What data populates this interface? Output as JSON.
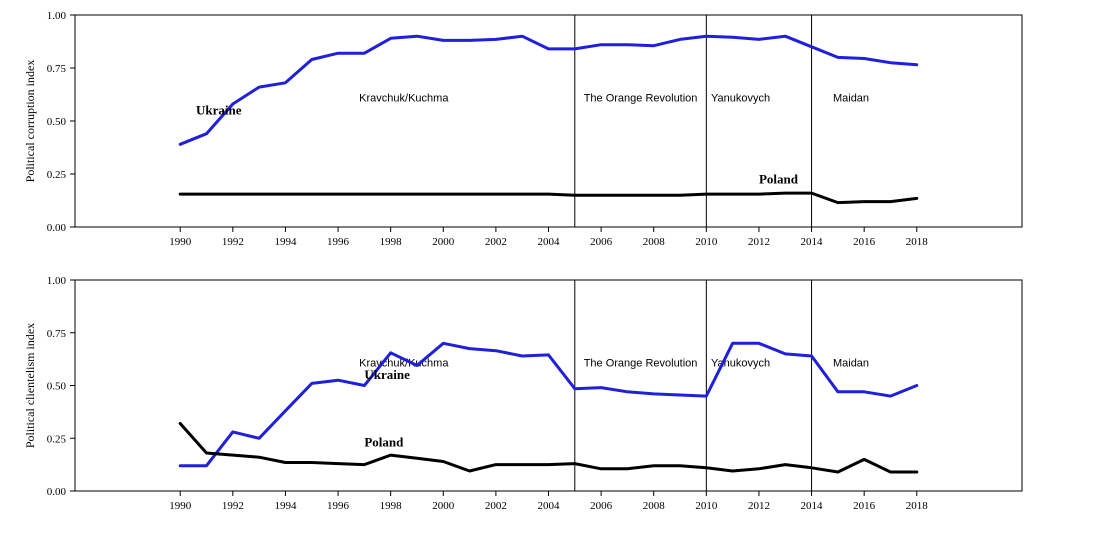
{
  "chart_data": [
    {
      "type": "line",
      "ylabel": "Political corruption index",
      "ylim": [
        0,
        1
      ],
      "yticks": [
        "0.00",
        "0.25",
        "0.50",
        "0.75",
        "1.00"
      ],
      "xlim": [
        1986,
        2022
      ],
      "xticks": [
        "1990",
        "1992",
        "1994",
        "1996",
        "1998",
        "2000",
        "2002",
        "2004",
        "2006",
        "2008",
        "2010",
        "2012",
        "2014",
        "2016",
        "2018"
      ],
      "x": [
        1990,
        1991,
        1992,
        1993,
        1994,
        1995,
        1996,
        1997,
        1998,
        1999,
        2000,
        2001,
        2002,
        2003,
        2004,
        2005,
        2006,
        2007,
        2008,
        2009,
        2010,
        2011,
        2012,
        2013,
        2014,
        2015,
        2016,
        2017,
        2018
      ],
      "series": [
        {
          "name": "Ukraine",
          "color": "#1f1fdc",
          "values": [
            0.39,
            0.44,
            0.58,
            0.66,
            0.68,
            0.79,
            0.82,
            0.82,
            0.89,
            0.9,
            0.88,
            0.88,
            0.885,
            0.9,
            0.84,
            0.84,
            0.86,
            0.86,
            0.855,
            0.885,
            0.9,
            0.895,
            0.885,
            0.9,
            0.85,
            0.8,
            0.795,
            0.775,
            0.765
          ]
        },
        {
          "name": "Poland",
          "color": "#000000",
          "values": [
            0.155,
            0.155,
            0.155,
            0.155,
            0.155,
            0.155,
            0.155,
            0.155,
            0.155,
            0.155,
            0.155,
            0.155,
            0.155,
            0.155,
            0.155,
            0.15,
            0.15,
            0.15,
            0.15,
            0.15,
            0.155,
            0.155,
            0.155,
            0.16,
            0.16,
            0.115,
            0.12,
            0.12,
            0.135
          ]
        }
      ],
      "vlines": [
        2005,
        2010,
        2014
      ],
      "periods": [
        {
          "label": "Kravchuk/Kuchma",
          "x": 1998.5
        },
        {
          "label": "The Orange Revolution",
          "x": 2007.5
        },
        {
          "label": "Yanukovych",
          "x": 2011.3
        },
        {
          "label": "Maidan",
          "x": 2015.5
        }
      ],
      "period_label_y": 0.61,
      "series_labels": [
        {
          "text": "Ukraine",
          "x": 1990.6,
          "y": 0.53
        },
        {
          "text": "Poland",
          "x": 2012.0,
          "y": 0.205
        }
      ]
    },
    {
      "type": "line",
      "ylabel": "Political clientelism index",
      "ylim": [
        0,
        1
      ],
      "yticks": [
        "0.00",
        "0.25",
        "0.50",
        "0.75",
        "1.00"
      ],
      "xlim": [
        1986,
        2022
      ],
      "xticks": [
        "1990",
        "1992",
        "1994",
        "1996",
        "1998",
        "2000",
        "2002",
        "2004",
        "2006",
        "2008",
        "2010",
        "2012",
        "2014",
        "2016",
        "2018"
      ],
      "x": [
        1990,
        1991,
        1992,
        1993,
        1994,
        1995,
        1996,
        1997,
        1998,
        1999,
        2000,
        2001,
        2002,
        2003,
        2004,
        2005,
        2006,
        2007,
        2008,
        2009,
        2010,
        2011,
        2012,
        2013,
        2014,
        2015,
        2016,
        2017,
        2018
      ],
      "series": [
        {
          "name": "Ukraine",
          "color": "#1f1fdc",
          "values": [
            0.12,
            0.12,
            0.28,
            0.25,
            0.38,
            0.51,
            0.525,
            0.5,
            0.655,
            0.595,
            0.7,
            0.675,
            0.665,
            0.64,
            0.645,
            0.485,
            0.49,
            0.47,
            0.46,
            0.455,
            0.45,
            0.7,
            0.7,
            0.65,
            0.64,
            0.47,
            0.47,
            0.45,
            0.5
          ]
        },
        {
          "name": "Poland",
          "color": "#000000",
          "values": [
            0.32,
            0.18,
            0.17,
            0.16,
            0.135,
            0.135,
            0.13,
            0.125,
            0.17,
            0.155,
            0.14,
            0.095,
            0.125,
            0.125,
            0.125,
            0.13,
            0.105,
            0.105,
            0.12,
            0.12,
            0.11,
            0.095,
            0.105,
            0.125,
            0.11,
            0.09,
            0.15,
            0.09,
            0.09
          ]
        }
      ],
      "vlines": [
        2005,
        2010,
        2014
      ],
      "periods": [
        {
          "label": "Kravchuk/Kuchma",
          "x": 1998.5
        },
        {
          "label": "The Orange Revolution",
          "x": 2007.5
        },
        {
          "label": "Yanukovych",
          "x": 2011.3
        },
        {
          "label": "Maidan",
          "x": 2015.5
        }
      ],
      "period_label_y": 0.61,
      "series_labels": [
        {
          "text": "Ukraine",
          "x": 1997.0,
          "y": 0.53
        },
        {
          "text": "Poland",
          "x": 1997.0,
          "y": 0.21
        }
      ]
    }
  ]
}
